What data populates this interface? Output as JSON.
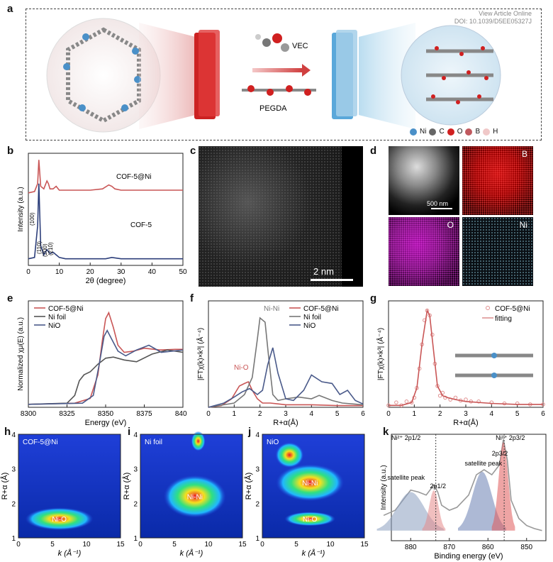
{
  "header": {
    "doi_line1": "View Article Online",
    "doi_line2": "DOI: 10.1039/D5EE05327J"
  },
  "panel_labels": [
    "a",
    "b",
    "c",
    "d",
    "e",
    "f",
    "g",
    "h",
    "i",
    "j",
    "k"
  ],
  "panel_a": {
    "molecules": [
      "VEC",
      "PEGDA"
    ],
    "legend": [
      {
        "label": "Ni",
        "color": "#4a90c8"
      },
      {
        "label": "C",
        "color": "#666666"
      },
      {
        "label": "O",
        "color": "#d02020"
      },
      {
        "label": "B",
        "color": "#c0595e"
      },
      {
        "label": "H",
        "color": "#f0c8c8"
      }
    ]
  },
  "panel_c": {
    "scalebar": "2 nm"
  },
  "panel_d": {
    "scalebar": "500 nm",
    "maps": [
      "B",
      "O",
      "Ni"
    ]
  },
  "chart_data": [
    {
      "id": "b",
      "type": "line",
      "xlabel": "2θ (degree)",
      "ylabel": "Intensity (a.u.)",
      "xlim": [
        0,
        50
      ],
      "xticks": [
        10,
        20,
        30,
        40,
        50
      ],
      "series": [
        {
          "name": "COF-5@Ni",
          "color": "#c95656",
          "x": [
            0,
            2,
            3,
            3.4,
            4,
            5,
            6,
            6.5,
            7,
            8,
            9,
            10,
            12,
            15,
            20,
            24,
            26,
            27,
            28,
            30,
            35,
            40,
            50
          ],
          "y": [
            0.55,
            0.56,
            0.62,
            0.8,
            0.6,
            0.58,
            0.64,
            0.62,
            0.58,
            0.58,
            0.6,
            0.57,
            0.57,
            0.57,
            0.57,
            0.58,
            0.61,
            0.6,
            0.58,
            0.57,
            0.57,
            0.57,
            0.57
          ]
        },
        {
          "name": "COF-5",
          "color": "#2c3e7a",
          "x": [
            0,
            2,
            3,
            3.4,
            4,
            5,
            6,
            7,
            8,
            9,
            10,
            12,
            15,
            20,
            25,
            27,
            30,
            40,
            50
          ],
          "y": [
            0.05,
            0.06,
            0.3,
            0.62,
            0.15,
            0.08,
            0.12,
            0.09,
            0.1,
            0.08,
            0.06,
            0.05,
            0.05,
            0.05,
            0.05,
            0.06,
            0.05,
            0.05,
            0.05
          ]
        }
      ],
      "annotations": [
        "(100)",
        "(110)",
        "(200)",
        "(210)"
      ]
    },
    {
      "id": "e",
      "type": "line",
      "xlabel": "Energy (eV)",
      "ylabel": "Normalized χμ(E) (a.u.)",
      "xlim": [
        8300,
        8400
      ],
      "xticks": [
        8300,
        8325,
        8350,
        8375,
        8400
      ],
      "series": [
        {
          "name": "COF-5@Ni",
          "color": "#c95656",
          "x": [
            8300,
            8330,
            8340,
            8345,
            8348,
            8350,
            8352,
            8355,
            8358,
            8362,
            8368,
            8375,
            8385,
            8395,
            8400
          ],
          "y": [
            0.0,
            0.02,
            0.1,
            0.5,
            1.1,
            1.45,
            1.55,
            1.3,
            1.0,
            0.88,
            0.9,
            0.95,
            0.92,
            0.93,
            0.93
          ]
        },
        {
          "name": "Ni foil",
          "color": "#555555",
          "x": [
            8300,
            8325,
            8330,
            8333,
            8336,
            8340,
            8345,
            8350,
            8355,
            8362,
            8370,
            8380,
            8390,
            8400
          ],
          "y": [
            0.0,
            0.02,
            0.15,
            0.4,
            0.5,
            0.55,
            0.68,
            0.78,
            0.8,
            0.75,
            0.72,
            0.85,
            0.92,
            0.88
          ]
        },
        {
          "name": "NiO",
          "color": "#4a5a8a",
          "x": [
            8300,
            8335,
            8342,
            8346,
            8349,
            8351,
            8354,
            8358,
            8363,
            8370,
            8378,
            8386,
            8400
          ],
          "y": [
            0.0,
            0.02,
            0.15,
            0.7,
            1.15,
            1.25,
            1.1,
            0.9,
            0.82,
            0.92,
            1.0,
            0.88,
            0.92
          ]
        }
      ]
    },
    {
      "id": "f",
      "type": "line",
      "xlabel": "R+α(Å)",
      "ylabel": "|FTχ(k)×k³| (Å⁻⁴)",
      "xlim": [
        0,
        6
      ],
      "xticks": [
        0,
        1,
        2,
        3,
        4,
        5,
        6
      ],
      "series": [
        {
          "name": "COF-5@Ni",
          "color": "#c95656",
          "x": [
            0,
            0.5,
            0.9,
            1.2,
            1.4,
            1.55,
            1.7,
            1.9,
            2.1,
            2.4,
            2.7,
            3.0,
            3.5,
            4.0,
            5.0,
            6.0
          ],
          "y": [
            0.0,
            0.02,
            0.1,
            0.25,
            0.28,
            0.3,
            0.2,
            0.1,
            0.05,
            0.05,
            0.04,
            0.03,
            0.03,
            0.03,
            0.02,
            0.02
          ]
        },
        {
          "name": "Ni foil",
          "color": "#777777",
          "x": [
            0,
            1.0,
            1.4,
            1.7,
            1.9,
            2.0,
            2.2,
            2.35,
            2.5,
            2.7,
            3.0,
            3.5,
            4.0,
            4.3,
            4.8,
            5.2,
            6.0
          ],
          "y": [
            0.0,
            0.05,
            0.15,
            0.35,
            0.8,
            1.05,
            1.0,
            0.55,
            0.15,
            0.08,
            0.1,
            0.12,
            0.1,
            0.14,
            0.08,
            0.05,
            0.03
          ]
        },
        {
          "name": "NiO",
          "color": "#4a5a8a",
          "x": [
            0,
            0.6,
            1.0,
            1.3,
            1.6,
            1.9,
            2.1,
            2.3,
            2.5,
            2.7,
            3.0,
            3.3,
            3.7,
            4.0,
            4.4,
            4.8,
            5.1,
            5.4,
            5.7,
            6.0
          ],
          "y": [
            0.0,
            0.05,
            0.12,
            0.18,
            0.22,
            0.15,
            0.2,
            0.5,
            0.7,
            0.4,
            0.1,
            0.08,
            0.2,
            0.38,
            0.3,
            0.28,
            0.15,
            0.2,
            0.08,
            0.04
          ]
        }
      ],
      "annotations": [
        "Ni-O",
        "Ni-Ni"
      ]
    },
    {
      "id": "g",
      "type": "scatter",
      "xlabel": "R+α(Å)",
      "ylabel": "|FTχ(k)×k³| (Å⁻⁴)",
      "xlim": [
        0,
        6
      ],
      "xticks": [
        0,
        1,
        2,
        3,
        4,
        5,
        6
      ],
      "series": [
        {
          "name": "COF-5@Ni",
          "color": "#e09090",
          "x": [
            0,
            0.3,
            0.5,
            0.7,
            0.9,
            1.0,
            1.1,
            1.2,
            1.3,
            1.4,
            1.5,
            1.6,
            1.7,
            1.8,
            1.9,
            2.0,
            2.1,
            2.2,
            2.4,
            2.6,
            2.8,
            3.0,
            3.2,
            3.5,
            4.0,
            4.5,
            5.0,
            5.5,
            6.0
          ],
          "y": [
            0.02,
            0.05,
            0.02,
            0.06,
            0.05,
            0.1,
            0.2,
            0.4,
            0.65,
            0.9,
            1.0,
            0.95,
            0.75,
            0.45,
            0.22,
            0.12,
            0.15,
            0.1,
            0.08,
            0.1,
            0.07,
            0.08,
            0.06,
            0.06,
            0.05,
            0.04,
            0.04,
            0.03,
            0.03
          ]
        },
        {
          "name": "fitting",
          "color": "#c95656",
          "x": [
            0,
            0.5,
            0.9,
            1.1,
            1.3,
            1.5,
            1.6,
            1.7,
            1.9,
            2.1,
            2.3,
            2.6,
            3.0,
            4.0,
            5.0,
            6.0
          ],
          "y": [
            0.02,
            0.02,
            0.05,
            0.2,
            0.65,
            1.0,
            0.95,
            0.7,
            0.22,
            0.12,
            0.1,
            0.08,
            0.06,
            0.04,
            0.03,
            0.03
          ]
        }
      ]
    },
    {
      "id": "k",
      "type": "line",
      "xlabel": "Binding energy (eV)",
      "ylabel": "Intensity (a.u.)",
      "xlim": [
        885,
        845
      ],
      "xticks": [
        880,
        870,
        860,
        850
      ],
      "series": [
        {
          "name": "spectrum",
          "color": "#999999",
          "x": [
            887,
            884,
            882,
            880,
            878,
            876,
            874,
            873,
            872,
            870,
            868,
            865,
            863,
            861,
            859,
            857,
            856,
            855,
            854,
            852,
            850,
            848,
            846
          ],
          "y": [
            0.25,
            0.3,
            0.4,
            0.5,
            0.48,
            0.45,
            0.55,
            0.48,
            0.35,
            0.3,
            0.33,
            0.45,
            0.65,
            0.7,
            0.65,
            0.75,
            1.0,
            0.8,
            0.4,
            0.22,
            0.15,
            0.12,
            0.1
          ]
        }
      ],
      "annotations": [
        "Ni²⁺ 2p1/2",
        "Ni²⁺ 2p3/2",
        "satellite peak",
        "satellite peak",
        "2p1/2",
        "2p3/2"
      ]
    }
  ],
  "panel_hij": [
    {
      "id": "h",
      "title": "COF-5@Ni",
      "peak": "Ni-O",
      "xlabel": "k (Å⁻¹)",
      "ylabel": "R+α (Å)"
    },
    {
      "id": "i",
      "title": "Ni foil",
      "peak": "Ni-Ni",
      "xlabel": "k (Å⁻¹)",
      "ylabel": "R+α (Å)"
    },
    {
      "id": "j",
      "title": "NiO",
      "peak": "Ni-Ni",
      "peak2": "Ni-O",
      "xlabel": "k (Å⁻¹)",
      "ylabel": "R+α (Å)"
    }
  ],
  "wt_axes": {
    "xticks": [
      0,
      5,
      10,
      15
    ],
    "yticks": [
      1,
      2,
      3,
      4
    ]
  }
}
